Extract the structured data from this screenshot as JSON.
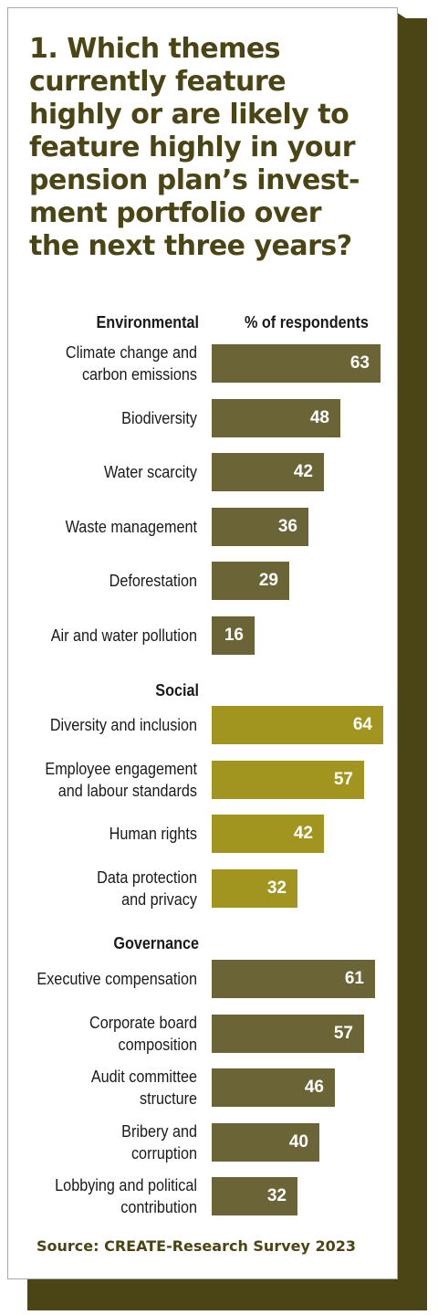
{
  "title": "1. Which themes currently feature highly or are likely to feature highly in your pension plan’s invest-ment portfolio over the next three years?",
  "column_header": "% of respondents",
  "source": "Source: CREATE-Research Survey 2023",
  "colors": {
    "dark_bar": "#6b6437",
    "light_bar": "#a19520",
    "title": "#4b4515",
    "shadow": "#4b4515"
  },
  "chart_data": {
    "type": "bar",
    "orientation": "horizontal",
    "title": "1. Which themes currently feature highly or are likely to feature highly in your pension plan’s invest-ment portfolio over the next three years?",
    "xlabel": "% of respondents",
    "xlim": [
      0,
      64
    ],
    "groups": [
      {
        "name": "Environmental",
        "color": "#6b6437",
        "items": [
          {
            "label": [
              "Climate change and",
              "carbon emissions"
            ],
            "value": 63
          },
          {
            "label": [
              "Biodiversity"
            ],
            "value": 48
          },
          {
            "label": [
              "Water scarcity"
            ],
            "value": 42
          },
          {
            "label": [
              "Waste management"
            ],
            "value": 36
          },
          {
            "label": [
              "Deforestation"
            ],
            "value": 29
          },
          {
            "label": [
              "Air and water pollution"
            ],
            "value": 16
          }
        ]
      },
      {
        "name": "Social",
        "color": "#a19520",
        "items": [
          {
            "label": [
              "Diversity and inclusion"
            ],
            "value": 64
          },
          {
            "label": [
              "Employee engagement",
              "and labour standards"
            ],
            "value": 57
          },
          {
            "label": [
              "Human rights"
            ],
            "value": 42
          },
          {
            "label": [
              "Data protection",
              "and privacy"
            ],
            "value": 32
          }
        ]
      },
      {
        "name": "Governance",
        "color": "#6b6437",
        "items": [
          {
            "label": [
              "Executive compensation"
            ],
            "value": 61
          },
          {
            "label": [
              "Corporate board",
              "composition"
            ],
            "value": 57
          },
          {
            "label": [
              "Audit committee",
              "structure"
            ],
            "value": 46
          },
          {
            "label": [
              "Bribery and",
              "corruption"
            ],
            "value": 40
          },
          {
            "label": [
              "Lobbying and political",
              "contribution"
            ],
            "value": 32
          }
        ]
      }
    ],
    "source": "Source: CREATE-Research Survey 2023"
  }
}
